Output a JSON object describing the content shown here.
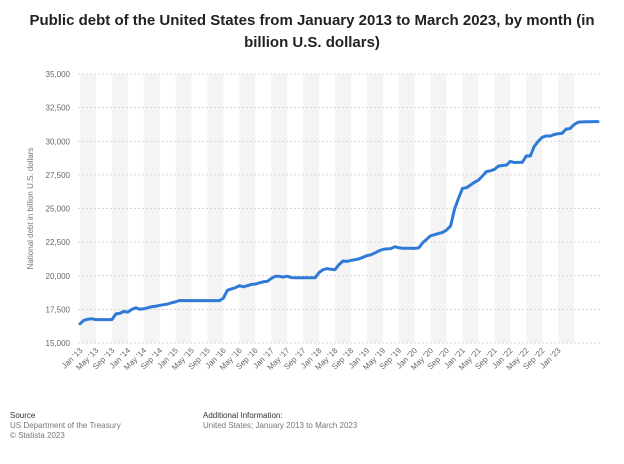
{
  "title": "Public debt of the United States from January 2013 to March 2023, by month (in billion U.S. dollars)",
  "footer": {
    "source_heading": "Source",
    "source_line1": "US Department of the Treasury",
    "source_line2": "© Statista 2023",
    "info_heading": "Additional Information:",
    "info_line1": "United States; January 2013 to March 2023"
  },
  "colors": {
    "line": "#2f7ad6",
    "band": "#f4f4f4",
    "grid": "#cccccc",
    "tick": "#666666"
  },
  "chart_data": {
    "type": "line",
    "title": "Public debt of the United States from January 2013 to March 2023, by month (in billion U.S. dollars)",
    "xlabel": "",
    "ylabel": "National debt in billion U.S. dollars",
    "ylim": [
      15000,
      35000
    ],
    "yticks": [
      15000,
      17500,
      20000,
      22500,
      25000,
      27500,
      30000,
      32500,
      35000
    ],
    "ytick_labels": [
      "15,000",
      "17,500",
      "20,000",
      "22,500",
      "25,000",
      "27,500",
      "30,000",
      "32,500",
      "35,000"
    ],
    "grid": true,
    "xtick_labels": [
      "Jan '13",
      "May '13",
      "Sep '13",
      "Jan '14",
      "May '14",
      "Sep '14",
      "Jan '15",
      "May '15",
      "Sep '15",
      "Jan '16",
      "May '16",
      "Sep '16",
      "Jan '17",
      "May '17",
      "Sep '17",
      "Jan '18",
      "May '18",
      "Sep '18",
      "Jan '19",
      "May '19",
      "Sep '19",
      "Jan '20",
      "May '20",
      "Sep '20",
      "Jan '21",
      "May '21",
      "Sep '21",
      "Jan '22",
      "May '22",
      "Sep '22",
      "Jan '23"
    ],
    "series": [
      {
        "values": [
          16430,
          16690,
          16770,
          16800,
          16740,
          16740,
          16740,
          16740,
          16740,
          17160,
          17200,
          17350,
          17300,
          17500,
          17620,
          17510,
          17540,
          17620,
          17700,
          17730,
          17800,
          17850,
          17900,
          17990,
          18060,
          18160,
          18150,
          18150,
          18150,
          18150,
          18150,
          18150,
          18150,
          18150,
          18150,
          18150,
          18340,
          18920,
          19020,
          19110,
          19260,
          19180,
          19260,
          19360,
          19380,
          19470,
          19550,
          19580,
          19800,
          19960,
          19960,
          19900,
          19970,
          19860,
          19850,
          19850,
          19850,
          19850,
          19850,
          19850,
          20240,
          20450,
          20530,
          20480,
          20450,
          20830,
          21100,
          21070,
          21140,
          21190,
          21250,
          21370,
          21500,
          21560,
          21700,
          21850,
          21960,
          22000,
          22020,
          22160,
          22080,
          22040,
          22040,
          22040,
          22030,
          22070,
          22450,
          22720,
          22970,
          23050,
          23150,
          23220,
          23400,
          23710,
          24960,
          25750,
          26500,
          26550,
          26750,
          26950,
          27110,
          27420,
          27740,
          27800,
          27910,
          28150,
          28200,
          28230,
          28500,
          28420,
          28430,
          28430,
          28910,
          28900,
          29620,
          30000,
          30290,
          30400,
          30380,
          30500,
          30560,
          30590,
          30900,
          30950,
          31240,
          31420,
          31440,
          31450,
          31450,
          31460,
          31460
        ]
      }
    ]
  }
}
